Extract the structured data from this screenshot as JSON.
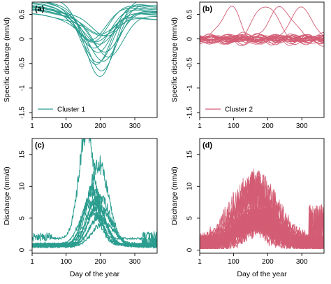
{
  "colors": {
    "cluster1": "#2a9d8f",
    "cluster2": "#d35d74"
  },
  "chart_data": [
    {
      "panel_label": "(a)",
      "type": "line",
      "xlabel": "",
      "ylabel": "Specific discharge (mm/d)",
      "xlim": [
        1,
        365
      ],
      "ylim": [
        -1.6,
        0.75
      ],
      "xticks": [
        "1",
        "100",
        "200",
        "300"
      ],
      "yticks": [
        "-1.5",
        "-1",
        "-0.5",
        "0",
        "0.5"
      ],
      "legend": {
        "label": "Cluster 1",
        "position": "bottom-left"
      },
      "series_family": "seasonal anomaly curves, 16 stations, minimum near day 200",
      "n_series": 16,
      "series_params": [
        {
          "amp": 1.55,
          "peak": 200,
          "shift": 0.1
        },
        {
          "amp": 1.35,
          "peak": 205,
          "shift": 0.05
        },
        {
          "amp": 1.2,
          "peak": 190,
          "shift": 0.08
        },
        {
          "amp": 1.05,
          "peak": 210,
          "shift": 0.0
        },
        {
          "amp": 0.95,
          "peak": 195,
          "shift": 0.12
        },
        {
          "amp": 0.85,
          "peak": 215,
          "shift": 0.02
        },
        {
          "amp": 0.75,
          "peak": 185,
          "shift": 0.06
        },
        {
          "amp": 0.65,
          "peak": 200,
          "shift": 0.04
        },
        {
          "amp": 0.55,
          "peak": 220,
          "shift": 0.1
        },
        {
          "amp": 0.5,
          "peak": 190,
          "shift": -0.02
        },
        {
          "amp": 0.45,
          "peak": 205,
          "shift": 0.08
        },
        {
          "amp": 0.4,
          "peak": 210,
          "shift": 0.0
        },
        {
          "amp": 0.7,
          "peak": 180,
          "shift": 0.15
        },
        {
          "amp": 0.9,
          "peak": 225,
          "shift": -0.05
        },
        {
          "amp": 0.6,
          "peak": 175,
          "shift": 0.12
        },
        {
          "amp": 1.1,
          "peak": 195,
          "shift": 0.03
        }
      ]
    },
    {
      "panel_label": "(b)",
      "type": "line",
      "xlabel": "",
      "ylabel": "Specific discharge (mm/d)",
      "xlim": [
        1,
        365
      ],
      "ylim": [
        -1.6,
        0.75
      ],
      "xticks": [
        "1",
        "100",
        "200",
        "300"
      ],
      "yticks": [
        "-1.5",
        "-1",
        "-0.5",
        "0",
        "0.5"
      ],
      "legend": {
        "label": "Cluster 2",
        "position": "bottom-left"
      },
      "series_family": "small-amplitude irregular anomaly curves around 0",
      "n_series": 28
    },
    {
      "panel_label": "(c)",
      "type": "line",
      "xlabel": "Day of the year",
      "ylabel": "Discharge (mm/d)",
      "xlim": [
        1,
        365
      ],
      "ylim": [
        -0.5,
        17.5
      ],
      "xticks": [
        "1",
        "100",
        "200",
        "300"
      ],
      "yticks": [
        "0",
        "5",
        "10",
        "15"
      ],
      "series_family": "daily discharge, 12 stations, snowmelt peak near day 160-200, highest peak about 17",
      "n_series": 12,
      "series_params": [
        {
          "peak": 17.0,
          "day": 160,
          "width": 32,
          "base": 1.8
        },
        {
          "peak": 12.5,
          "day": 195,
          "width": 40,
          "base": 1.0
        },
        {
          "peak": 9.0,
          "day": 180,
          "width": 38,
          "base": 0.8
        },
        {
          "peak": 8.0,
          "day": 175,
          "width": 35,
          "base": 0.9
        },
        {
          "peak": 7.5,
          "day": 200,
          "width": 42,
          "base": 0.7
        },
        {
          "peak": 7.0,
          "day": 185,
          "width": 36,
          "base": 0.8
        },
        {
          "peak": 6.5,
          "day": 170,
          "width": 40,
          "base": 0.9
        },
        {
          "peak": 6.0,
          "day": 190,
          "width": 38,
          "base": 0.7
        },
        {
          "peak": 5.5,
          "day": 205,
          "width": 44,
          "base": 0.6
        },
        {
          "peak": 5.0,
          "day": 178,
          "width": 34,
          "base": 0.8
        },
        {
          "peak": 4.5,
          "day": 195,
          "width": 40,
          "base": 0.6
        },
        {
          "peak": 3.8,
          "day": 210,
          "width": 46,
          "base": 0.5
        }
      ]
    },
    {
      "panel_label": "(d)",
      "type": "line",
      "xlabel": "Day of the year",
      "ylabel": "Discharge (mm/d)",
      "xlim": [
        1,
        365
      ],
      "ylim": [
        -0.5,
        17.5
      ],
      "xticks": [
        "1",
        "100",
        "200",
        "300"
      ],
      "yticks": [
        "0",
        "5",
        "10",
        "15"
      ],
      "series_family": "noisy daily discharge, 28 stations, peaks up to about 12.8 near day 150-180",
      "n_series": 28
    }
  ]
}
